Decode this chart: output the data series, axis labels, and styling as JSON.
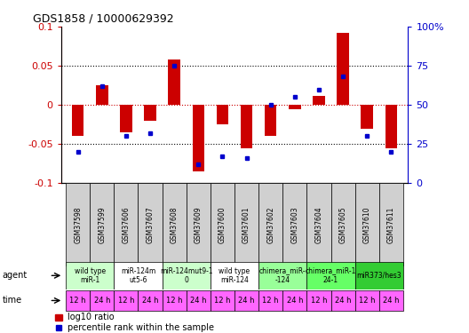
{
  "title": "GDS1858 / 10000629392",
  "samples": [
    "GSM37598",
    "GSM37599",
    "GSM37606",
    "GSM37607",
    "GSM37608",
    "GSM37609",
    "GSM37600",
    "GSM37601",
    "GSM37602",
    "GSM37603",
    "GSM37604",
    "GSM37605",
    "GSM37610",
    "GSM37611"
  ],
  "log10_ratio": [
    -0.04,
    0.025,
    -0.035,
    -0.02,
    0.058,
    -0.085,
    -0.025,
    -0.055,
    -0.04,
    -0.005,
    0.012,
    0.092,
    -0.03,
    -0.055
  ],
  "percentile": [
    20,
    62,
    30,
    32,
    75,
    12,
    17,
    16,
    50,
    55,
    60,
    68,
    30,
    20
  ],
  "ylim": [
    -0.1,
    0.1
  ],
  "yticks_left": [
    -0.1,
    -0.05,
    0.0,
    0.05,
    0.1
  ],
  "ytick_labels_left": [
    "-0.1",
    "-0.05",
    "0",
    "0.05",
    "0.1"
  ],
  "y2lim": [
    0,
    100
  ],
  "y2ticks": [
    0,
    25,
    50,
    75,
    100
  ],
  "y2tick_labels": [
    "0",
    "25",
    "50",
    "75",
    "100%"
  ],
  "bar_color": "#cc0000",
  "dot_color": "#0000cc",
  "agent_groups": [
    {
      "label": "wild type\nmiR-1",
      "start": 0,
      "end": 2,
      "color": "#ccffcc"
    },
    {
      "label": "miR-124m\nut5-6",
      "start": 2,
      "end": 4,
      "color": "#ffffff"
    },
    {
      "label": "miR-124mut9-1\n0",
      "start": 4,
      "end": 6,
      "color": "#ccffcc"
    },
    {
      "label": "wild type\nmiR-124",
      "start": 6,
      "end": 8,
      "color": "#ffffff"
    },
    {
      "label": "chimera_miR-\n-124",
      "start": 8,
      "end": 10,
      "color": "#99ff99"
    },
    {
      "label": "chimera_miR-1\n24-1",
      "start": 10,
      "end": 12,
      "color": "#66ff66"
    },
    {
      "label": "miR373/hes3",
      "start": 12,
      "end": 14,
      "color": "#33cc33"
    }
  ],
  "time_labels": [
    "12 h",
    "24 h",
    "12 h",
    "24 h",
    "12 h",
    "24 h",
    "12 h",
    "24 h",
    "12 h",
    "24 h",
    "12 h",
    "24 h",
    "12 h",
    "24 h"
  ],
  "time_color": "#ff66ff",
  "bg_color": "#ffffff"
}
